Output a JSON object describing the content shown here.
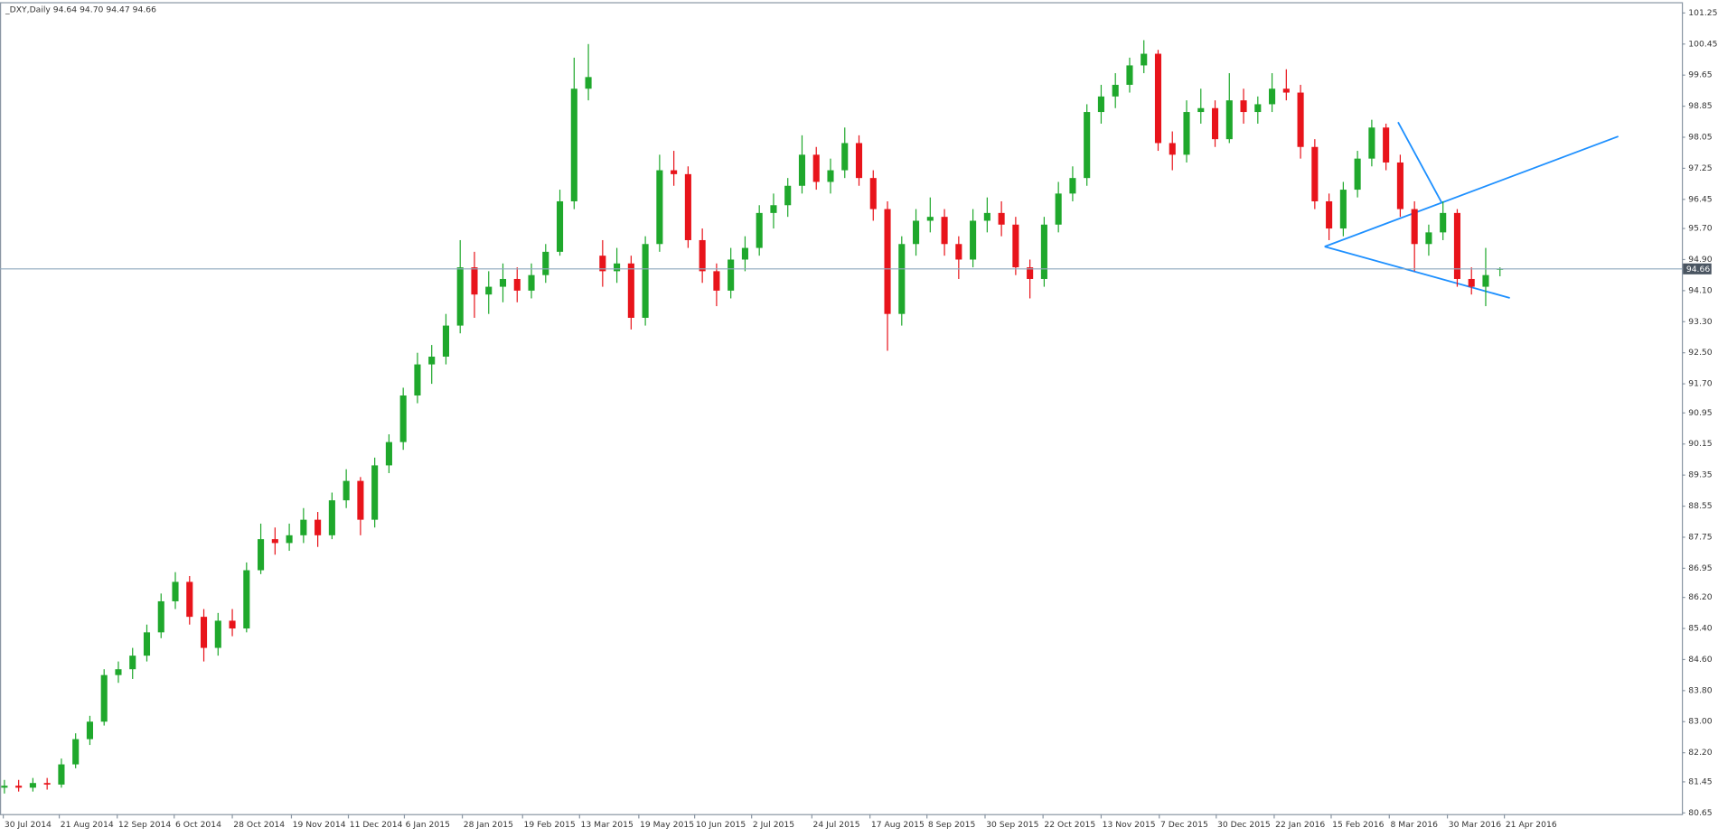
{
  "chart_data": {
    "type": "candlestick",
    "title": "_DXY,Daily  94.64 94.70 94.47 94.66",
    "up_color": "#1fa82c",
    "down_color": "#e8141b",
    "price_line_color": "#8ea7bd",
    "last_price": 94.66,
    "grid": false,
    "xlim": [
      -0.31,
      117.77
    ],
    "ylim": [
      80.62,
      101.5
    ],
    "xticks": [
      {
        "value": -0.08,
        "label": "30 Jul 2014"
      },
      {
        "value": 3.85,
        "label": "21 Aug 2014"
      },
      {
        "value": 7.92,
        "label": "12 Sep 2014"
      },
      {
        "value": 11.92,
        "label": "6 Oct 2014"
      },
      {
        "value": 16.0,
        "label": "28 Oct 2014"
      },
      {
        "value": 20.15,
        "label": "19 Nov 2014"
      },
      {
        "value": 24.15,
        "label": "11 Dec 2014"
      },
      {
        "value": 28.08,
        "label": "6 Jan 2015"
      },
      {
        "value": 32.15,
        "label": "28 Jan 2015"
      },
      {
        "value": 36.38,
        "label": "19 Feb 2015"
      },
      {
        "value": 40.38,
        "label": "13 Mar 2015"
      },
      {
        "value": 44.54,
        "label": "19 May 2015"
      },
      {
        "value": 48.46,
        "label": "10 Jun 2015"
      },
      {
        "value": 52.46,
        "label": "2 Jul 2015"
      },
      {
        "value": 56.69,
        "label": "24 Jul 2015"
      },
      {
        "value": 60.77,
        "label": "17 Aug 2015"
      },
      {
        "value": 64.77,
        "label": "8 Sep 2015"
      },
      {
        "value": 68.85,
        "label": "30 Sep 2015"
      },
      {
        "value": 72.92,
        "label": "22 Oct 2015"
      },
      {
        "value": 77.0,
        "label": "13 Nov 2015"
      },
      {
        "value": 81.08,
        "label": "7 Dec 2015"
      },
      {
        "value": 85.08,
        "label": "30 Dec 2015"
      },
      {
        "value": 89.15,
        "label": "22 Jan 2016"
      },
      {
        "value": 93.15,
        "label": "15 Feb 2016"
      },
      {
        "value": 97.23,
        "label": "8 Mar 2016"
      },
      {
        "value": 101.31,
        "label": "30 Mar 2016"
      },
      {
        "value": 105.31,
        "label": "21 Apr 2016"
      }
    ],
    "yticks": [
      80.65,
      81.45,
      {
        "value": 82.2,
        "label": "82.20"
      },
      {
        "value": 83.0,
        "label": "83.00"
      },
      {
        "value": 83.8,
        "label": "83.80"
      },
      {
        "value": 84.6,
        "label": "84.60"
      },
      {
        "value": 85.4,
        "label": "85.40"
      },
      {
        "value": 86.2,
        "label": "86.20"
      },
      86.95,
      87.75,
      88.55,
      89.35,
      90.15,
      90.95,
      {
        "value": 91.7,
        "label": "91.70"
      },
      {
        "value": 92.5,
        "label": "92.50"
      },
      {
        "value": 93.3,
        "label": "93.30"
      },
      {
        "value": 94.1,
        "label": "94.10"
      },
      {
        "value": 94.9,
        "label": "94.90"
      },
      {
        "value": 95.7,
        "label": "95.70"
      },
      96.45,
      97.25,
      98.05,
      98.85,
      99.65,
      100.45,
      101.25
    ],
    "open": [
      81.3,
      81.35,
      81.3,
      81.42,
      81.38,
      81.9,
      82.55,
      83.0,
      84.2,
      84.35,
      84.7,
      85.3,
      86.1,
      86.6,
      85.7,
      84.9,
      85.6,
      85.4,
      86.9,
      87.7,
      87.6,
      87.8,
      88.2,
      87.8,
      88.7,
      89.2,
      88.2,
      89.6,
      90.2,
      91.4,
      92.2,
      92.4,
      93.2,
      94.7,
      94.0,
      94.2,
      94.4,
      94.1,
      94.5,
      95.1,
      96.4,
      99.3,
      95.0,
      94.6,
      94.8,
      93.4,
      95.3,
      97.2,
      97.1,
      95.4,
      94.6,
      94.1,
      94.9,
      95.2,
      96.1,
      96.3,
      96.8,
      97.6,
      96.9,
      97.2,
      97.9,
      97.0,
      96.2,
      93.5,
      95.3,
      95.9,
      96.0,
      95.3,
      94.9,
      95.9,
      96.1,
      95.8,
      94.7,
      94.4,
      95.8,
      96.6,
      97.0,
      98.7,
      99.1,
      99.4,
      99.9,
      100.2,
      97.9,
      97.6,
      98.7,
      98.8,
      98.0,
      99.0,
      98.7,
      98.9,
      99.3,
      99.2,
      97.8,
      96.4,
      95.7,
      96.7,
      97.5,
      98.3,
      97.4,
      96.2,
      95.3,
      95.6,
      96.1,
      94.4,
      94.2,
      94.64
    ],
    "high": [
      81.5,
      81.5,
      81.55,
      81.55,
      82.05,
      82.7,
      83.15,
      84.35,
      84.55,
      84.9,
      85.5,
      86.3,
      86.85,
      86.75,
      85.9,
      85.8,
      85.9,
      87.1,
      88.1,
      88.0,
      88.1,
      88.5,
      88.4,
      88.9,
      89.5,
      89.3,
      89.8,
      90.4,
      91.6,
      92.5,
      92.7,
      93.5,
      95.4,
      95.1,
      94.6,
      94.8,
      94.7,
      94.8,
      95.3,
      96.7,
      100.1,
      100.45,
      95.4,
      95.2,
      95.0,
      95.5,
      97.6,
      97.7,
      97.3,
      95.7,
      94.8,
      95.2,
      95.5,
      96.3,
      96.6,
      97.0,
      98.1,
      97.8,
      97.5,
      98.3,
      98.1,
      97.2,
      96.4,
      95.5,
      96.2,
      96.5,
      96.2,
      95.5,
      96.2,
      96.5,
      96.4,
      96.0,
      94.9,
      96.0,
      96.9,
      97.3,
      98.9,
      99.4,
      99.7,
      100.1,
      100.55,
      100.3,
      98.2,
      99.0,
      99.3,
      99.0,
      99.7,
      99.3,
      99.1,
      99.7,
      99.8,
      99.4,
      98.0,
      96.6,
      96.9,
      97.7,
      98.5,
      98.4,
      97.6,
      96.4,
      95.8,
      96.4,
      96.2,
      94.7,
      95.2,
      94.7
    ],
    "low": [
      81.15,
      81.2,
      81.2,
      81.25,
      81.3,
      81.8,
      82.4,
      82.9,
      84.0,
      84.1,
      84.55,
      85.15,
      85.9,
      85.5,
      84.55,
      84.7,
      85.2,
      85.3,
      86.8,
      87.3,
      87.4,
      87.6,
      87.5,
      87.7,
      88.5,
      87.8,
      88.0,
      89.4,
      90.0,
      91.2,
      91.7,
      92.2,
      93.0,
      93.4,
      93.5,
      93.8,
      93.8,
      93.9,
      94.3,
      95.0,
      96.2,
      99.0,
      94.2,
      94.3,
      93.1,
      93.2,
      95.1,
      96.8,
      95.2,
      94.3,
      93.7,
      93.9,
      94.6,
      95.0,
      95.7,
      96.0,
      96.6,
      96.7,
      96.6,
      97.0,
      96.8,
      95.9,
      92.55,
      93.2,
      95.0,
      95.6,
      95.0,
      94.4,
      94.7,
      95.6,
      95.5,
      94.5,
      93.9,
      94.2,
      95.6,
      96.4,
      96.8,
      98.4,
      98.8,
      99.2,
      99.7,
      97.7,
      97.2,
      97.4,
      98.4,
      97.8,
      97.9,
      98.4,
      98.4,
      98.7,
      99.0,
      97.5,
      96.2,
      95.4,
      95.5,
      96.5,
      97.3,
      97.2,
      96.0,
      94.6,
      95.0,
      95.4,
      94.2,
      94.0,
      93.7,
      94.47
    ],
    "close": [
      81.35,
      81.3,
      81.42,
      81.38,
      81.9,
      82.55,
      83.0,
      84.2,
      84.35,
      84.7,
      85.3,
      86.1,
      86.6,
      85.7,
      84.9,
      85.6,
      85.4,
      86.9,
      87.7,
      87.6,
      87.8,
      88.2,
      87.8,
      88.7,
      89.2,
      88.2,
      89.6,
      90.2,
      91.4,
      92.2,
      92.4,
      93.2,
      94.7,
      94.0,
      94.2,
      94.4,
      94.1,
      94.5,
      95.1,
      96.4,
      99.3,
      99.6,
      94.6,
      94.8,
      93.4,
      95.3,
      97.2,
      97.1,
      95.4,
      94.6,
      94.1,
      94.9,
      95.2,
      96.1,
      96.3,
      96.8,
      97.6,
      96.9,
      97.2,
      97.9,
      97.0,
      96.2,
      93.5,
      95.3,
      95.9,
      96.0,
      95.3,
      94.9,
      95.9,
      96.1,
      95.8,
      94.7,
      94.4,
      95.8,
      96.6,
      97.0,
      98.7,
      99.1,
      99.4,
      99.9,
      100.2,
      97.9,
      97.6,
      98.7,
      98.8,
      98.0,
      99.0,
      98.7,
      98.9,
      99.3,
      99.2,
      97.8,
      96.4,
      95.7,
      96.7,
      97.5,
      98.3,
      97.4,
      96.2,
      95.3,
      95.6,
      96.1,
      94.4,
      94.2,
      94.5,
      94.66
    ]
  }
}
